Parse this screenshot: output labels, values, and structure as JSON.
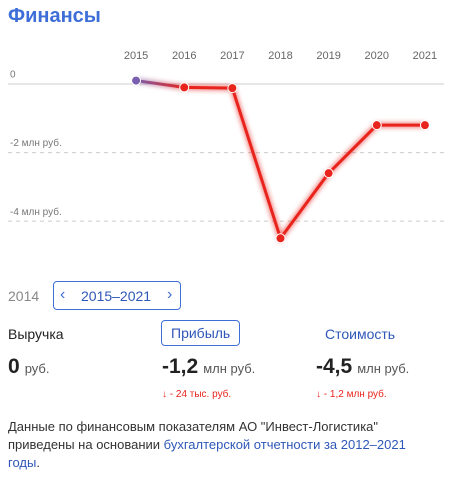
{
  "title": "Финансы",
  "chart_data": {
    "type": "line",
    "categories": [
      "2015",
      "2016",
      "2017",
      "2018",
      "2019",
      "2020",
      "2021"
    ],
    "series": [
      {
        "color": "#e8241c",
        "start_color": "#7a5fb0",
        "values": [
          0.1,
          -0.1,
          -0.12,
          -4.5,
          -2.6,
          -1.2,
          -1.2
        ]
      }
    ],
    "ylim": [
      -4.9,
      0.7
    ],
    "yticks": [
      0,
      {
        "value": -2,
        "label": "-2 млн руб."
      },
      {
        "value": -4,
        "label": "-4 млн руб."
      }
    ],
    "grid": true
  },
  "period": {
    "previous": "2014",
    "current": "2015–2021"
  },
  "metrics": [
    {
      "name": "Выручка",
      "value": "0",
      "unit": "руб."
    },
    {
      "name": "Прибыль",
      "value": "-1,2",
      "unit": "млн руб.",
      "change": "- 24 тыс. руб."
    },
    {
      "name": "Стоимость",
      "value": "-4,5",
      "unit": "млн руб.",
      "change": "- 1,2 млн руб."
    }
  ],
  "note": {
    "text": "Данные по финансовым показателям АО \"Инвест-Логистика\" приведены на основании ",
    "link": "бухгалтерской отчетности за 2012–2021 годы",
    "end": "."
  }
}
